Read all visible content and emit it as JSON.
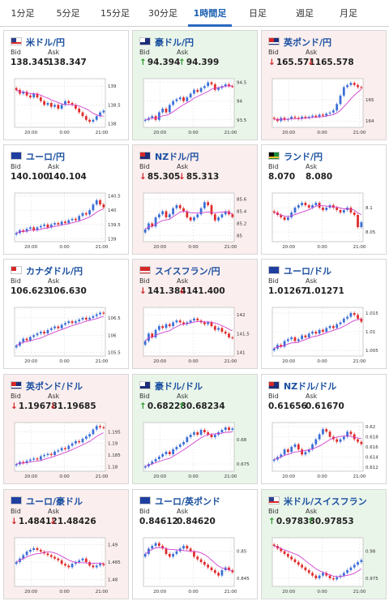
{
  "tabs": [
    {
      "label": "1分足",
      "active": false
    },
    {
      "label": "5分足",
      "active": false
    },
    {
      "label": "15分足",
      "active": false
    },
    {
      "label": "30分足",
      "active": false
    },
    {
      "label": "1時間足",
      "active": true
    },
    {
      "label": "日足",
      "active": false
    },
    {
      "label": "週足",
      "active": false
    },
    {
      "label": "月足",
      "active": false
    }
  ],
  "colors": {
    "bullish": "#3b6fd6",
    "bearish": "#e02a2a",
    "moving_average": "#d040d0",
    "up_background": "#eaf5ea",
    "down_background": "#fbeeee",
    "up_arrow": "#2e9a2e",
    "down_arrow": "#d02828"
  },
  "cards": [
    {
      "pair": "米ドル/円",
      "flag": "us-flag-icon",
      "state": "neutral",
      "bid_label": "Bid",
      "ask_label": "Ask",
      "bid": "138.345",
      "ask": "138.347",
      "arrow": "",
      "chart_data": {
        "type": "candlestick",
        "x_ticks": [
          "20:00",
          "0:00",
          "21:00"
        ],
        "y_ticks": [
          "139",
          "138.5",
          "138"
        ],
        "ylim": [
          137.9,
          139.2
        ],
        "closes": [
          138.9,
          138.8,
          138.85,
          138.75,
          138.7,
          138.8,
          138.7,
          138.6,
          138.5,
          138.55,
          138.45,
          138.5,
          138.4,
          138.5,
          138.6,
          138.55,
          138.5,
          138.4,
          138.3,
          138.2,
          138.1,
          138.05,
          138.1,
          138.2,
          138.3,
          138.345
        ]
      }
    },
    {
      "pair": "豪ドル/円",
      "flag": "au-flag-icon",
      "state": "up",
      "bid_label": "Bid",
      "ask_label": "Ask",
      "bid": "94.394",
      "ask": "94.399",
      "arrow": "up",
      "chart_data": {
        "type": "candlestick",
        "x_ticks": [
          "20:00",
          "0:00",
          "21:00"
        ],
        "y_ticks": [
          "94.5",
          "94",
          "93.5"
        ],
        "ylim": [
          93.3,
          94.6
        ],
        "closes": [
          93.5,
          93.55,
          93.6,
          93.5,
          93.7,
          93.8,
          93.7,
          93.9,
          94.0,
          94.05,
          94.1,
          94.0,
          94.1,
          94.2,
          94.3,
          94.25,
          94.35,
          94.4,
          94.5,
          94.45,
          94.3,
          94.35,
          94.4,
          94.45,
          94.4,
          94.394
        ]
      }
    },
    {
      "pair": "英ポンド/円",
      "flag": "uk-flag-icon",
      "state": "down",
      "bid_label": "Bid",
      "ask_label": "Ask",
      "bid": "165.571",
      "ask": "165.578",
      "arrow": "down",
      "chart_data": {
        "type": "candlestick",
        "x_ticks": [
          "20:00",
          "0:00",
          "21:00"
        ],
        "y_ticks": [
          "165",
          "164"
        ],
        "ylim": [
          163.7,
          166.0
        ],
        "closes": [
          164.1,
          164.0,
          164.15,
          164.05,
          164.1,
          164.2,
          164.15,
          164.1,
          164.2,
          164.15,
          164.2,
          164.25,
          164.2,
          164.3,
          164.25,
          164.35,
          164.4,
          164.5,
          164.8,
          165.2,
          165.6,
          165.7,
          165.8,
          165.7,
          165.6,
          165.571
        ]
      }
    },
    {
      "pair": "ユーロ/円",
      "flag": "eu-flag-icon",
      "state": "neutral",
      "bid_label": "Bid",
      "ask_label": "Ask",
      "bid": "140.100",
      "ask": "140.104",
      "arrow": "",
      "chart_data": {
        "type": "candlestick",
        "x_ticks": [
          "20:00",
          "0:00",
          "21:00"
        ],
        "y_ticks": [
          "140.5",
          "140",
          "139.5",
          "139"
        ],
        "ylim": [
          138.9,
          140.6
        ],
        "closes": [
          139.2,
          139.3,
          139.25,
          139.35,
          139.4,
          139.3,
          139.4,
          139.45,
          139.5,
          139.4,
          139.5,
          139.55,
          139.5,
          139.6,
          139.55,
          139.65,
          139.7,
          139.65,
          139.8,
          139.9,
          139.85,
          140.0,
          140.2,
          140.35,
          140.2,
          140.1
        ]
      }
    },
    {
      "pair": "NZドル/円",
      "flag": "nz-flag-icon",
      "state": "down",
      "bid_label": "Bid",
      "ask_label": "Ask",
      "bid": "85.305",
      "ask": "85.313",
      "arrow": "down",
      "chart_data": {
        "type": "candlestick",
        "x_ticks": [
          "20:00",
          "0:00",
          "21:00"
        ],
        "y_ticks": [
          "85.6",
          "85.4",
          "85.2",
          "85"
        ],
        "ylim": [
          84.9,
          85.7
        ],
        "closes": [
          85.1,
          85.2,
          85.15,
          85.3,
          85.35,
          85.4,
          85.3,
          85.35,
          85.45,
          85.5,
          85.45,
          85.4,
          85.3,
          85.25,
          85.3,
          85.35,
          85.45,
          85.55,
          85.5,
          85.35,
          85.25,
          85.3,
          85.35,
          85.4,
          85.35,
          85.305
        ]
      }
    },
    {
      "pair": "ランド/円",
      "flag": "za-flag-icon",
      "state": "neutral",
      "bid_label": "Bid",
      "ask_label": "Ask",
      "bid": "8.070",
      "ask": "8.080",
      "arrow": "",
      "chart_data": {
        "type": "candlestick",
        "x_ticks": [
          "20:00",
          "0:00",
          "21:00"
        ],
        "y_ticks": [
          "8.1",
          "8.05"
        ],
        "ylim": [
          8.03,
          8.13
        ],
        "closes": [
          8.09,
          8.085,
          8.08,
          8.075,
          8.08,
          8.09,
          8.1,
          8.105,
          8.11,
          8.105,
          8.1,
          8.105,
          8.11,
          8.1,
          8.095,
          8.1,
          8.105,
          8.1,
          8.095,
          8.09,
          8.095,
          8.1,
          8.09,
          8.085,
          8.06,
          8.07
        ]
      }
    },
    {
      "pair": "カナダドル/円",
      "flag": "ca-flag-icon",
      "state": "neutral",
      "bid_label": "Bid",
      "ask_label": "Ask",
      "bid": "106.623",
      "ask": "106.630",
      "arrow": "",
      "chart_data": {
        "type": "candlestick",
        "x_ticks": [
          "20:00",
          "0:00",
          "21:00"
        ],
        "y_ticks": [
          "106.5",
          "106",
          "105.5"
        ],
        "ylim": [
          105.4,
          106.8
        ],
        "closes": [
          105.7,
          105.8,
          105.9,
          105.85,
          105.95,
          106.0,
          106.05,
          106.1,
          106.05,
          106.15,
          106.2,
          106.25,
          106.2,
          106.3,
          106.35,
          106.4,
          106.35,
          106.4,
          106.45,
          106.5,
          106.45,
          106.5,
          106.55,
          106.6,
          106.65,
          106.623
        ]
      }
    },
    {
      "pair": "スイスフラン/円",
      "flag": "ch-flag-icon",
      "state": "down",
      "bid_label": "Bid",
      "ask_label": "Ask",
      "bid": "141.384",
      "ask": "141.400",
      "arrow": "down",
      "chart_data": {
        "type": "candlestick",
        "x_ticks": [
          "20:00",
          "0:00",
          "21:00"
        ],
        "y_ticks": [
          "142",
          "141.5",
          "141"
        ],
        "ylim": [
          140.9,
          142.2
        ],
        "closes": [
          141.3,
          141.5,
          141.4,
          141.6,
          141.7,
          141.65,
          141.75,
          141.7,
          141.8,
          141.85,
          141.8,
          141.75,
          141.8,
          141.85,
          141.9,
          141.85,
          141.8,
          141.75,
          141.8,
          141.7,
          141.6,
          141.65,
          141.55,
          141.5,
          141.4,
          141.384
        ]
      }
    },
    {
      "pair": "ユーロ/ドル",
      "flag": "eu-flag-icon",
      "state": "neutral",
      "bid_label": "Bid",
      "ask_label": "Ask",
      "bid": "1.01267",
      "ask": "1.01271",
      "arrow": "",
      "chart_data": {
        "type": "candlestick",
        "x_ticks": [
          "20:00",
          "0:00",
          "21:00"
        ],
        "y_ticks": [
          "1.015",
          "1.01",
          "1.005"
        ],
        "ylim": [
          1.0035,
          1.0165
        ],
        "closes": [
          1.0055,
          1.0065,
          1.006,
          1.0075,
          1.008,
          1.0085,
          1.0075,
          1.008,
          1.009,
          1.0085,
          1.0095,
          1.01,
          1.0095,
          1.0105,
          1.01,
          1.011,
          1.0115,
          1.011,
          1.012,
          1.0125,
          1.0135,
          1.014,
          1.015,
          1.0145,
          1.0135,
          1.01267
        ]
      }
    },
    {
      "pair": "英ポンド/ドル",
      "flag": "uk-flag-icon",
      "state": "down",
      "bid_label": "Bid",
      "ask_label": "Ask",
      "bid": "1.19678",
      "ask": "1.19685",
      "arrow": "down",
      "chart_data": {
        "type": "candlestick",
        "x_ticks": [
          "20:00",
          "0:00",
          "21:00"
        ],
        "y_ticks": [
          "1.195",
          "1.19",
          "1.185",
          "1.18"
        ],
        "ylim": [
          1.178,
          1.199
        ],
        "closes": [
          1.181,
          1.182,
          1.1815,
          1.1825,
          1.183,
          1.1835,
          1.183,
          1.1845,
          1.185,
          1.1855,
          1.185,
          1.1865,
          1.187,
          1.188,
          1.1875,
          1.189,
          1.19,
          1.191,
          1.1905,
          1.192,
          1.193,
          1.194,
          1.196,
          1.1975,
          1.197,
          1.19678
        ]
      }
    },
    {
      "pair": "豪ドル/ドル",
      "flag": "au-flag-icon",
      "state": "up",
      "bid_label": "Bid",
      "ask_label": "Ask",
      "bid": "0.68228",
      "ask": "0.68234",
      "arrow": "up",
      "chart_data": {
        "type": "candlestick",
        "x_ticks": [
          "20:00",
          "0:00",
          "21:00"
        ],
        "y_ticks": [
          "0.68",
          "0.675"
        ],
        "ylim": [
          0.6735,
          0.6835
        ],
        "closes": [
          0.6745,
          0.675,
          0.6755,
          0.676,
          0.6765,
          0.677,
          0.6775,
          0.677,
          0.678,
          0.6785,
          0.679,
          0.6795,
          0.6805,
          0.681,
          0.6815,
          0.681,
          0.682,
          0.6815,
          0.681,
          0.6805,
          0.681,
          0.6815,
          0.682,
          0.6825,
          0.682,
          0.68228
        ]
      }
    },
    {
      "pair": "NZドル/ドル",
      "flag": "nz-flag-icon",
      "state": "neutral",
      "bid_label": "Bid",
      "ask_label": "Ask",
      "bid": "0.61656",
      "ask": "0.61670",
      "arrow": "",
      "chart_data": {
        "type": "candlestick",
        "x_ticks": [
          "20:00",
          "0:00",
          "21:00"
        ],
        "y_ticks": [
          "0.62",
          "0.618",
          "0.616",
          "0.614",
          "0.612"
        ],
        "ylim": [
          0.6112,
          0.6208
        ],
        "closes": [
          0.6135,
          0.614,
          0.6145,
          0.6155,
          0.615,
          0.616,
          0.6165,
          0.6155,
          0.6145,
          0.615,
          0.6155,
          0.6165,
          0.6175,
          0.6185,
          0.6195,
          0.619,
          0.618,
          0.6175,
          0.617,
          0.6175,
          0.618,
          0.619,
          0.6185,
          0.6175,
          0.617,
          0.61656
        ]
      }
    },
    {
      "pair": "ユーロ/豪ドル",
      "flag": "eu-flag-icon",
      "state": "down",
      "bid_label": "Bid",
      "ask_label": "Ask",
      "bid": "1.48412",
      "ask": "1.48426",
      "arrow": "down",
      "chart_data": {
        "type": "candlestick",
        "x_ticks": [
          "20:00",
          "0:00",
          "21:00"
        ],
        "y_ticks": [
          "1.49",
          "1.485",
          "1.48"
        ],
        "ylim": [
          1.478,
          1.492
        ],
        "closes": [
          1.485,
          1.486,
          1.487,
          1.488,
          1.4885,
          1.489,
          1.4885,
          1.488,
          1.4875,
          1.487,
          1.4865,
          1.486,
          1.4855,
          1.4845,
          1.484,
          1.4835,
          1.4845,
          1.485,
          1.4855,
          1.486,
          1.485,
          1.484,
          1.4835,
          1.484,
          1.4845,
          1.48412
        ]
      }
    },
    {
      "pair": "ユーロ/英ポンド",
      "flag": "eu-flag-icon",
      "state": "neutral",
      "bid_label": "Bid",
      "ask_label": "Ask",
      "bid": "0.84612",
      "ask": "0.84620",
      "arrow": "",
      "chart_data": {
        "type": "candlestick",
        "x_ticks": [
          "20:00",
          "0:00",
          "21:00"
        ],
        "y_ticks": [
          "0.85",
          "0.845"
        ],
        "ylim": [
          0.8435,
          0.8525
        ],
        "closes": [
          0.8495,
          0.8505,
          0.851,
          0.8515,
          0.851,
          0.8505,
          0.8495,
          0.849,
          0.8495,
          0.85,
          0.8505,
          0.851,
          0.8505,
          0.85,
          0.849,
          0.8485,
          0.848,
          0.8475,
          0.847,
          0.8465,
          0.846,
          0.8455,
          0.8465,
          0.847,
          0.8465,
          0.84612
        ]
      }
    },
    {
      "pair": "米ドル/スイスフラン",
      "flag": "us-flag-icon",
      "state": "up",
      "bid_label": "Bid",
      "ask_label": "Ask",
      "bid": "0.97838",
      "ask": "0.97853",
      "arrow": "up",
      "chart_data": {
        "type": "candlestick",
        "x_ticks": [
          "20:00",
          "0:00",
          "21:00"
        ],
        "y_ticks": [
          "0.98",
          "0.975"
        ],
        "ylim": [
          0.9735,
          0.9825
        ],
        "closes": [
          0.981,
          0.9805,
          0.98,
          0.9795,
          0.979,
          0.9785,
          0.978,
          0.9775,
          0.977,
          0.9765,
          0.976,
          0.9755,
          0.975,
          0.9755,
          0.976,
          0.9755,
          0.975,
          0.9748,
          0.9752,
          0.9755,
          0.976,
          0.9765,
          0.977,
          0.9775,
          0.978,
          0.97838
        ]
      }
    }
  ]
}
